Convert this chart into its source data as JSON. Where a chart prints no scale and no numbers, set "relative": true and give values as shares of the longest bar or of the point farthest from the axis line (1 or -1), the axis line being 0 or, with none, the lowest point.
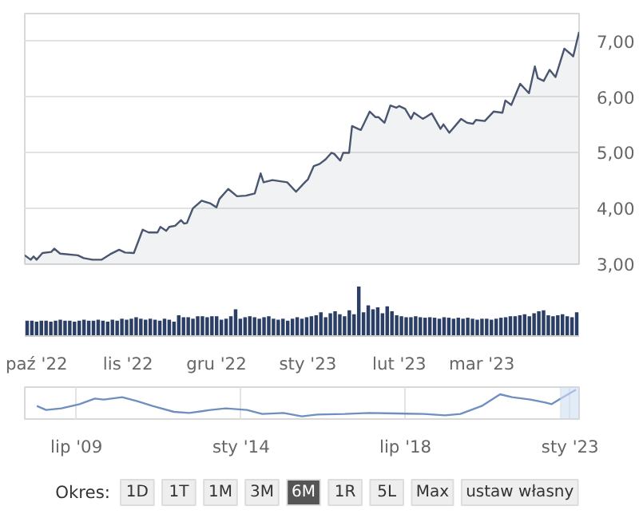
{
  "chart_data": [
    {
      "type": "area",
      "xlim": [
        "2022-09-27",
        "2023-04-03"
      ],
      "ylim": [
        3.0,
        7.5
      ],
      "xticks": [
        {
          "value": "2022-10-01",
          "label": "paź '22"
        },
        {
          "value": "2022-11-01",
          "label": "lis '22"
        },
        {
          "value": "2022-12-01",
          "label": "gru '22"
        },
        {
          "value": "2023-01-01",
          "label": "sty '23"
        },
        {
          "value": "2023-02-01",
          "label": "lut '23"
        },
        {
          "value": "2023-03-01",
          "label": "mar '23"
        }
      ],
      "yticks": [
        {
          "value": 3,
          "label": "3,00"
        },
        {
          "value": 4,
          "label": "4,00"
        },
        {
          "value": 5,
          "label": "5,00"
        },
        {
          "value": 6,
          "label": "6,00"
        },
        {
          "value": 7,
          "label": "7,00"
        }
      ],
      "grid": "y",
      "marker": "none",
      "tick_labels": "y",
      "x": [
        "2022-09-27",
        "2022-09-29",
        "2022-09-30",
        "2022-10-01",
        "2022-10-03",
        "2022-10-06",
        "2022-10-07",
        "2022-10-09",
        "2022-10-15",
        "2022-10-17",
        "2022-10-20",
        "2022-10-23",
        "2022-10-26",
        "2022-10-29",
        "2022-10-31",
        "2022-11-03",
        "2022-11-06",
        "2022-11-08",
        "2022-11-11",
        "2022-11-12",
        "2022-11-14",
        "2022-11-15",
        "2022-11-17",
        "2022-11-19",
        "2022-11-20",
        "2022-11-21",
        "2022-11-23",
        "2022-11-26",
        "2022-11-29",
        "2022-12-01",
        "2022-12-02",
        "2022-12-05",
        "2022-12-08",
        "2022-12-11",
        "2022-12-14",
        "2022-12-16",
        "2022-12-17",
        "2022-12-20",
        "2022-12-25",
        "2022-12-28",
        "2022-12-31",
        "2023-01-01",
        "2023-01-03",
        "2023-01-05",
        "2023-01-07",
        "2023-01-09",
        "2023-01-10",
        "2023-01-12",
        "2023-01-13",
        "2023-01-15",
        "2023-01-16",
        "2023-01-18",
        "2023-01-19",
        "2023-01-22",
        "2023-01-24",
        "2023-01-25",
        "2023-01-27",
        "2023-01-29",
        "2023-01-31",
        "2023-02-01",
        "2023-02-03",
        "2023-02-05",
        "2023-02-06",
        "2023-02-09",
        "2023-02-10",
        "2023-02-12",
        "2023-02-15",
        "2023-02-16",
        "2023-02-18",
        "2023-02-22",
        "2023-02-24",
        "2023-02-26",
        "2023-02-27",
        "2023-03-02",
        "2023-03-05",
        "2023-03-08",
        "2023-03-09",
        "2023-03-11",
        "2023-03-14",
        "2023-03-17",
        "2023-03-19",
        "2023-03-20",
        "2023-03-22",
        "2023-03-24",
        "2023-03-26",
        "2023-03-29",
        "2023-03-31",
        "2023-04-01",
        "2023-04-03"
      ],
      "series": [
        {
          "color": "#4a5670",
          "values": [
            3.16,
            3.08,
            3.14,
            3.08,
            3.2,
            3.22,
            3.28,
            3.19,
            3.16,
            3.11,
            3.08,
            3.08,
            3.18,
            3.26,
            3.21,
            3.2,
            3.62,
            3.57,
            3.57,
            3.67,
            3.6,
            3.67,
            3.69,
            3.79,
            3.73,
            3.74,
            4.0,
            4.14,
            4.09,
            4.02,
            4.17,
            4.35,
            4.22,
            4.23,
            4.27,
            4.63,
            4.47,
            4.51,
            4.47,
            4.3,
            4.47,
            4.52,
            4.76,
            4.8,
            4.88,
            5.0,
            4.98,
            4.86,
            5.0,
            5.0,
            5.48,
            5.43,
            5.41,
            5.74,
            5.64,
            5.64,
            5.54,
            5.85,
            5.81,
            5.84,
            5.79,
            5.61,
            5.72,
            5.61,
            5.64,
            5.71,
            5.43,
            5.51,
            5.36,
            5.61,
            5.54,
            5.52,
            5.59,
            5.57,
            5.74,
            5.72,
            5.94,
            5.86,
            6.24,
            6.07,
            6.55,
            6.34,
            6.29,
            6.49,
            6.36,
            6.87,
            6.78,
            6.73,
            7.17
          ]
        }
      ]
    },
    {
      "type": "bar",
      "relative": true,
      "tick_labels": "x",
      "grid": false,
      "categories": [
        null,
        null,
        null,
        null,
        null,
        null,
        null,
        null,
        null,
        null,
        null,
        null,
        null,
        null,
        null,
        null,
        null,
        null,
        null,
        null,
        null,
        null,
        null,
        null,
        null,
        null,
        null,
        null,
        null,
        null,
        null,
        null,
        null,
        null,
        null,
        null,
        null,
        null,
        null,
        null,
        null,
        null,
        null,
        null,
        null,
        null,
        null,
        null,
        null,
        null,
        null,
        null,
        null,
        null,
        null,
        null,
        null,
        null,
        null,
        null,
        null,
        null,
        null,
        null,
        null,
        null,
        null,
        null,
        null,
        null,
        null,
        null,
        null,
        null,
        null,
        null,
        null,
        null,
        null,
        null,
        null,
        null,
        null,
        null,
        null,
        null,
        null,
        null,
        null,
        null,
        null,
        null,
        null,
        null,
        null,
        null,
        null,
        null,
        null,
        null,
        null,
        null,
        null,
        null,
        null,
        null,
        null,
        null,
        null,
        null,
        null,
        null,
        null,
        null,
        null,
        null,
        null
      ],
      "series": [
        {
          "color": "#2b3f66",
          "values": [
            0.31,
            0.31,
            0.29,
            0.31,
            0.31,
            0.29,
            0.31,
            0.33,
            0.31,
            0.31,
            0.29,
            0.31,
            0.33,
            0.31,
            0.31,
            0.33,
            0.31,
            0.29,
            0.33,
            0.31,
            0.35,
            0.33,
            0.35,
            0.38,
            0.35,
            0.33,
            0.35,
            0.33,
            0.31,
            0.35,
            0.33,
            0.29,
            0.42,
            0.38,
            0.38,
            0.35,
            0.4,
            0.4,
            0.38,
            0.4,
            0.4,
            0.33,
            0.35,
            0.4,
            0.54,
            0.35,
            0.38,
            0.4,
            0.38,
            0.35,
            0.38,
            0.4,
            0.35,
            0.33,
            0.35,
            0.31,
            0.35,
            0.38,
            0.35,
            0.38,
            0.4,
            0.42,
            0.48,
            0.38,
            0.46,
            0.5,
            0.44,
            0.4,
            0.52,
            0.44,
            1.0,
            0.48,
            0.62,
            0.54,
            0.58,
            0.46,
            0.6,
            0.5,
            0.42,
            0.4,
            0.38,
            0.38,
            0.4,
            0.38,
            0.37,
            0.38,
            0.37,
            0.35,
            0.38,
            0.37,
            0.35,
            0.37,
            0.35,
            0.37,
            0.35,
            0.33,
            0.35,
            0.35,
            0.33,
            0.35,
            0.37,
            0.38,
            0.4,
            0.4,
            0.42,
            0.44,
            0.4,
            0.46,
            0.5,
            0.52,
            0.42,
            0.4,
            0.42,
            0.44,
            0.4,
            0.38,
            0.48
          ]
        }
      ]
    },
    {
      "type": "line",
      "relative": true,
      "tick_labels": "x",
      "grid": "x",
      "xlim": [
        "2008-02-01",
        "2023-04-01"
      ],
      "xticks": [
        {
          "value": "2009-07-01",
          "label": "lip '09"
        },
        {
          "value": "2014-01-01",
          "label": "sty '14"
        },
        {
          "value": "2018-07-01",
          "label": "lip '18"
        },
        {
          "value": "2023-01-01",
          "label": "sty '23"
        }
      ],
      "bands": [
        {
          "axis": "x",
          "from": "2022-09-27",
          "to": "2023-04-01",
          "color": "#cfe0f3"
        }
      ],
      "x": [
        "2008-06",
        "2008-09",
        "2009-02",
        "2009-08",
        "2010-01",
        "2010-04",
        "2010-10",
        "2011-03",
        "2011-08",
        "2012-03",
        "2012-08",
        "2013-03",
        "2013-08",
        "2014-03",
        "2014-08",
        "2015-03",
        "2015-09",
        "2016-02",
        "2016-11",
        "2017-07",
        "2018-04",
        "2019-01",
        "2019-08",
        "2020-01",
        "2020-04",
        "2020-08",
        "2021-02",
        "2021-06",
        "2021-12",
        "2022-05",
        "2022-07",
        "2022-10",
        "2023-03"
      ],
      "series": [
        {
          "color": "#6f8fc0",
          "values": [
            0.39,
            0.24,
            0.3,
            0.46,
            0.67,
            0.63,
            0.72,
            0.57,
            0.39,
            0.17,
            0.13,
            0.24,
            0.3,
            0.24,
            0.09,
            0.13,
            0,
            0.07,
            0.09,
            0.13,
            0.11,
            0.09,
            0.04,
            0.09,
            0.22,
            0.39,
            0.83,
            0.72,
            0.63,
            0.52,
            0.46,
            0.67,
            1
          ]
        }
      ]
    },
    {
      "type": "other",
      "title": "Okres:",
      "categories": [
        "1D",
        "1T",
        "1M",
        "3M",
        "6M",
        "1R",
        "5L",
        "Max",
        "ustaw własny"
      ],
      "colors": [
        "#eeeeee",
        "#eeeeee",
        "#eeeeee",
        "#eeeeee",
        "#555555",
        "#eeeeee",
        "#eeeeee",
        "#eeeeee",
        "#eeeeee"
      ]
    }
  ]
}
